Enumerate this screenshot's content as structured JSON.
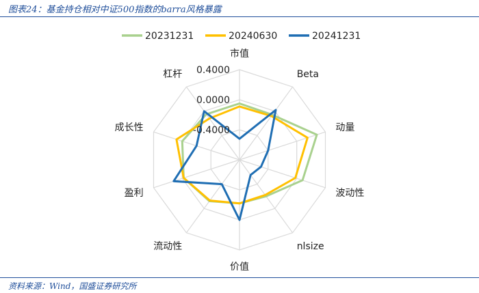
{
  "header": {
    "title": "图表24：基金持仓相对中证500指数的barra风格暴露"
  },
  "footer": {
    "source": "资料来源：Wind，国盛证券研究所"
  },
  "colors": {
    "accent": "#1f4e9a",
    "grid": "#d9d9d9"
  },
  "chart_data": {
    "type": "radar",
    "title": "",
    "axes": [
      "市值",
      "Beta",
      "动量",
      "波动性",
      "nlsize",
      "价值",
      "流动性",
      "盈利",
      "成长性",
      "杠杆"
    ],
    "tick_labels": [
      "-0.4000",
      "0.0000",
      "0.4000"
    ],
    "range": [
      -0.8,
      0.4
    ],
    "grid_levels": [
      -0.8,
      -0.4,
      0.0,
      0.4
    ],
    "legend_position": "top",
    "series": [
      {
        "name": "20231231",
        "color": "#a9d18e",
        "values": [
          -0.05,
          -0.06,
          0.28,
          0.08,
          -0.2,
          -0.22,
          -0.12,
          -0.02,
          0.0,
          -0.05
        ]
      },
      {
        "name": "20240630",
        "color": "#ffc000",
        "values": [
          -0.09,
          -0.08,
          0.15,
          -0.02,
          -0.22,
          -0.22,
          -0.13,
          -0.02,
          0.08,
          -0.12
        ]
      },
      {
        "name": "20241231",
        "color": "#1f6eb3",
        "values": [
          -0.52,
          0.02,
          -0.4,
          -0.5,
          -0.55,
          0.0,
          -0.4,
          0.12,
          -0.2,
          0.0
        ]
      }
    ]
  }
}
